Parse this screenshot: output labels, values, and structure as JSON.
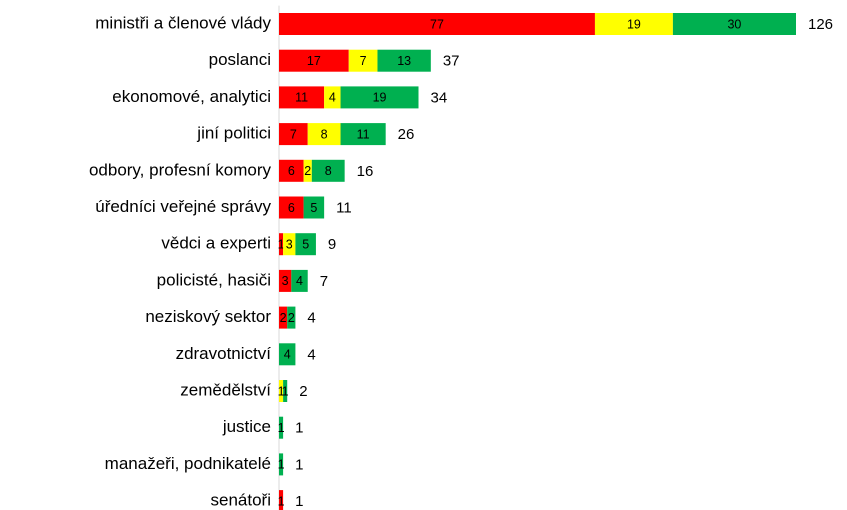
{
  "chart_data": {
    "type": "stacked-bar-horizontal",
    "categories": [
      "ministři a členové vlády",
      "poslanci",
      "ekonomové, analytici",
      "jiní politici",
      "odbory, profesní komory",
      "úředníci veřejné správy",
      "vědci a experti",
      "policisté, hasiči",
      "neziskový sektor",
      "zdravotnictví",
      "zemědělství",
      "justice",
      "manažeři, podnikatelé",
      "senátoři"
    ],
    "series": [
      {
        "color": "#ff0000",
        "values": [
          77,
          17,
          11,
          7,
          6,
          6,
          1,
          3,
          2,
          null,
          null,
          null,
          null,
          1
        ]
      },
      {
        "color": "#ffff00",
        "values": [
          19,
          7,
          4,
          8,
          2,
          null,
          3,
          null,
          null,
          null,
          1,
          null,
          null,
          null
        ]
      },
      {
        "color": "#00b050",
        "values": [
          30,
          13,
          19,
          11,
          8,
          5,
          5,
          4,
          2,
          4,
          1,
          1,
          1,
          null
        ]
      }
    ],
    "totals": [
      126,
      37,
      34,
      26,
      16,
      11,
      9,
      7,
      4,
      4,
      2,
      1,
      1,
      1
    ]
  }
}
